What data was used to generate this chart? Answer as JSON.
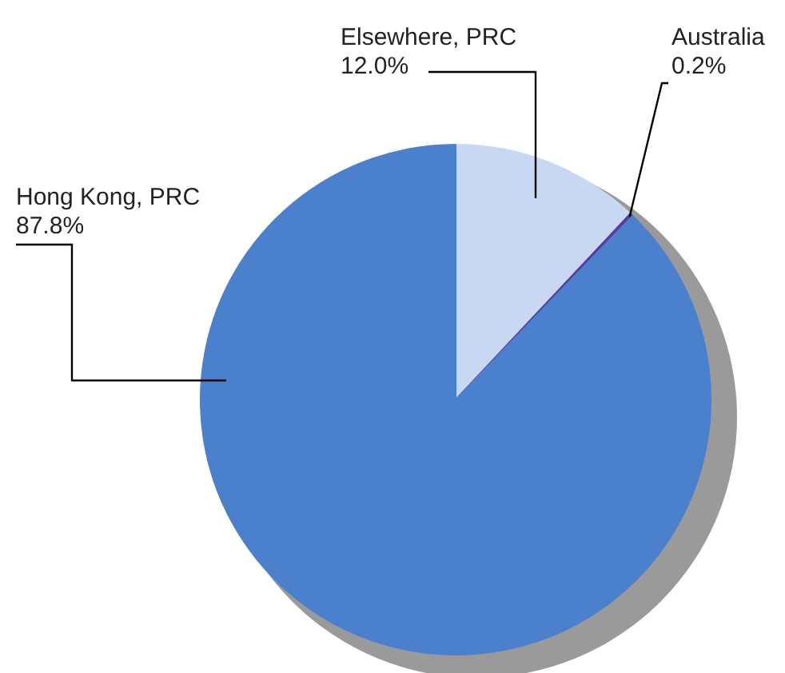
{
  "chart_data": {
    "type": "pie",
    "categories": [
      "Elsewhere, PRC",
      "Australia",
      "Hong Kong, PRC"
    ],
    "values": [
      12.0,
      0.2,
      87.8
    ],
    "value_labels": [
      "12.0%",
      "0.2%",
      "87.8%"
    ],
    "colors": [
      "#c8d8f2",
      "#5a3c9c",
      "#4a80cc"
    ],
    "legend": false
  }
}
